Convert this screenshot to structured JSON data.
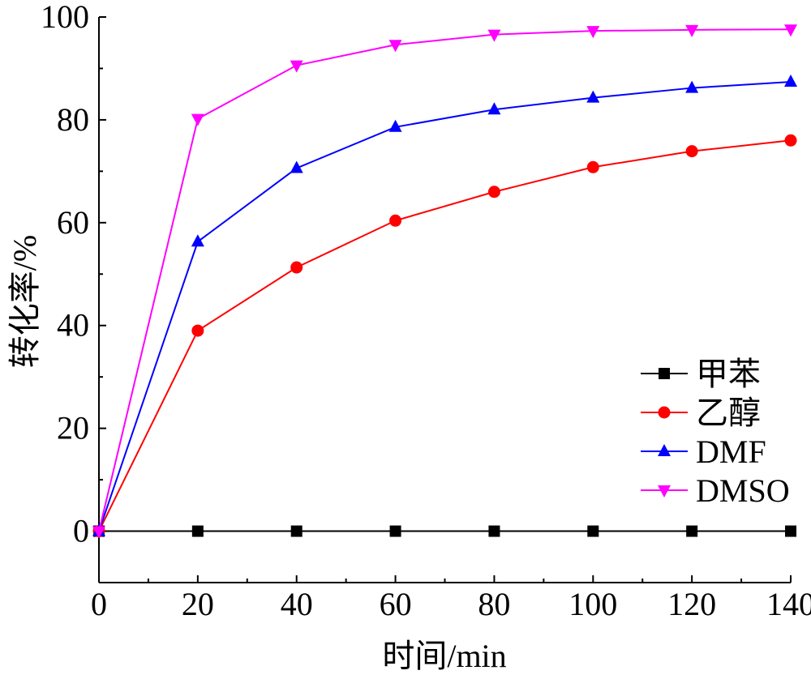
{
  "chart_data": {
    "type": "line",
    "title": "",
    "xlabel": "时间/min",
    "ylabel": "转化率/%",
    "x": [
      0,
      20,
      40,
      60,
      80,
      100,
      120,
      140
    ],
    "xlim": [
      0,
      140
    ],
    "ylim": [
      -10,
      100
    ],
    "xticks": [
      0,
      20,
      40,
      60,
      80,
      100,
      120,
      140
    ],
    "yticks": [
      0,
      20,
      40,
      60,
      80,
      100
    ],
    "grid": false,
    "legend_position": "right",
    "series": [
      {
        "name": "甲苯",
        "marker": "square",
        "color": "#000000",
        "values": [
          0,
          0,
          0,
          0,
          0,
          0,
          0,
          0
        ]
      },
      {
        "name": "乙醇",
        "marker": "circle",
        "color": "#ff0000",
        "values": [
          0,
          39,
          51.3,
          60.4,
          66,
          70.8,
          73.9,
          76
        ]
      },
      {
        "name": "DMF",
        "marker": "triangle-up",
        "color": "#0000ff",
        "values": [
          0,
          56.3,
          70.6,
          78.6,
          82,
          84.3,
          86.2,
          87.4
        ]
      },
      {
        "name": "DMSO",
        "marker": "triangle-down",
        "color": "#ff00ff",
        "values": [
          0,
          80.2,
          90.6,
          94.6,
          96.6,
          97.3,
          97.5,
          97.6
        ]
      }
    ]
  }
}
